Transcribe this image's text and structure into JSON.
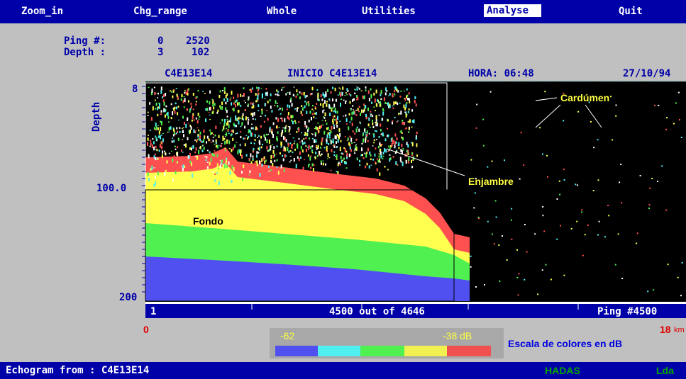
{
  "menu": [
    "Zoom_in",
    "Chg_range",
    "Whole",
    "Utilities",
    "Analyse",
    "Quit"
  ],
  "info": {
    "ping_label": "Ping #:",
    "ping_from": "0",
    "ping_to": "2520",
    "depth_label": "Depth :",
    "depth_from": "3",
    "depth_to": "102"
  },
  "header": {
    "file": "C4E13E14",
    "inicio": "INICIO C4E13E14",
    "hora": "HORA: 06:48",
    "date": "27/10/94"
  },
  "y_axis": {
    "title": "Depth",
    "labels": [
      "8",
      "100.0",
      "200"
    ]
  },
  "x_axis": {
    "start": "1",
    "position": "4500 out of 4646",
    "ping": "Ping #4500"
  },
  "annotations": {
    "school": "Cardúmen",
    "swarm": "Enjambre",
    "bottom": "Fondo"
  },
  "distance": {
    "start": "0",
    "end": "18",
    "unit": "km"
  },
  "color_scale": {
    "min": "-62",
    "max": "-38 dB",
    "caption": "Escala de colores en dB"
  },
  "status": {
    "source": "Echogram from : C4E13E14",
    "system": "HADAS",
    "mode": "Lda"
  }
}
